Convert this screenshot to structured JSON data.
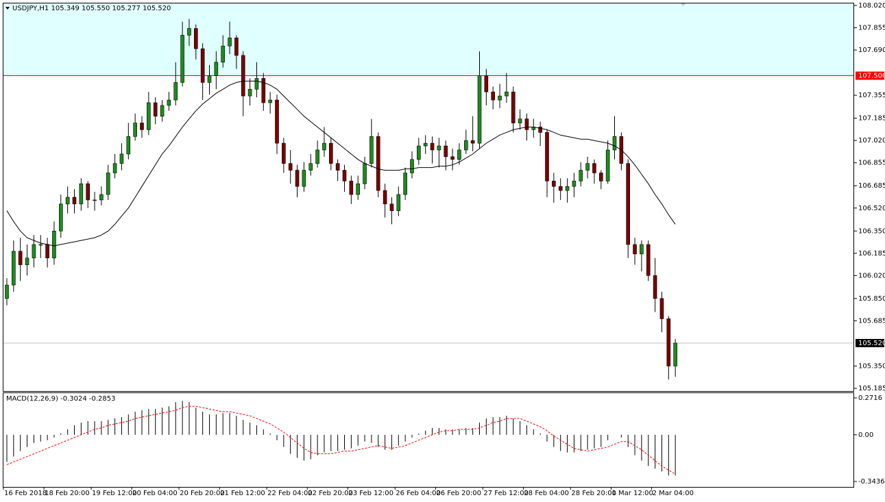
{
  "chart_data": [
    {
      "type": "candlestick",
      "title": "USDJPY,H1 105.349 105.550 105.277 105.520",
      "categories": [
        "16 Feb 2018",
        null,
        null,
        null,
        null,
        null,
        "18 Feb 20:00",
        null,
        null,
        null,
        null,
        null,
        null,
        "19 Feb 12:00",
        null,
        null,
        null,
        null,
        null,
        "20 Feb 04:00",
        null,
        null,
        null,
        null,
        null,
        null,
        "20 Feb 20:00",
        null,
        null,
        null,
        null,
        null,
        "21 Feb 12:00",
        null,
        null,
        null,
        null,
        null,
        null,
        "22 Feb 04:00",
        null,
        null,
        null,
        null,
        null,
        "22 Feb 20:00",
        null,
        null,
        null,
        null,
        null,
        "23 Feb 12:00",
        null,
        null,
        null,
        null,
        null,
        null,
        "26 Feb 04:00",
        null,
        null,
        null,
        null,
        null,
        "26 Feb 20:00",
        null,
        null,
        null,
        null,
        null,
        null,
        "27 Feb 12:00",
        null,
        null,
        null,
        null,
        null,
        "28 Feb 04:00",
        null,
        null,
        null,
        null,
        null,
        null,
        "28 Feb 20:00",
        null,
        null,
        null,
        null,
        null,
        "1 Mar 12:00",
        null,
        null,
        null,
        null,
        null,
        "2 Mar 04:00",
        null,
        null,
        null
      ],
      "open": [
        105.85,
        105.95,
        106.2,
        106.1,
        106.15,
        106.25,
        106.25,
        106.15,
        106.35,
        106.55,
        106.6,
        106.55,
        106.7,
        106.58,
        106.58,
        106.62,
        106.78,
        106.85,
        106.92,
        107.05,
        107.15,
        107.1,
        107.3,
        107.2,
        107.28,
        107.32,
        107.45,
        107.8,
        107.85,
        107.7,
        107.45,
        107.5,
        107.6,
        107.72,
        107.78,
        107.65,
        107.35,
        107.4,
        107.48,
        107.3,
        107.32,
        107.0,
        106.85,
        106.8,
        106.68,
        106.8,
        106.85,
        106.95,
        107.0,
        106.85,
        106.8,
        106.72,
        106.62,
        106.7,
        106.85,
        107.05,
        106.65,
        106.55,
        106.5,
        106.62,
        106.78,
        106.88,
        106.98,
        107.0,
        106.95,
        106.98,
        106.9,
        106.88,
        106.95,
        107.02,
        107.0,
        107.5,
        107.38,
        107.32,
        107.35,
        107.38,
        107.15,
        107.18,
        107.1,
        107.12,
        107.08,
        106.72,
        106.68,
        106.65,
        106.68,
        106.72,
        106.8,
        106.85,
        106.78,
        106.72,
        106.95,
        107.05,
        106.85,
        106.25,
        106.18,
        106.25,
        106.02,
        105.85,
        105.7,
        105.35
      ],
      "high": [
        106.0,
        106.28,
        106.3,
        106.25,
        106.32,
        106.32,
        106.3,
        106.42,
        106.62,
        106.68,
        106.66,
        106.74,
        106.72,
        106.64,
        106.68,
        106.84,
        106.92,
        107.0,
        107.15,
        107.22,
        107.2,
        107.38,
        107.34,
        107.32,
        107.38,
        107.6,
        107.9,
        107.92,
        107.88,
        107.74,
        107.58,
        107.68,
        107.8,
        107.9,
        107.8,
        107.68,
        107.48,
        107.6,
        107.52,
        107.38,
        107.36,
        107.04,
        106.95,
        106.84,
        106.86,
        106.92,
        107.02,
        107.12,
        107.04,
        106.88,
        106.84,
        106.76,
        106.76,
        106.9,
        107.18,
        107.08,
        106.7,
        106.6,
        106.68,
        106.82,
        106.94,
        107.04,
        107.06,
        107.05,
        107.04,
        107.02,
        106.96,
        107.0,
        107.1,
        107.2,
        107.68,
        107.55,
        107.42,
        107.44,
        107.52,
        107.42,
        107.25,
        107.22,
        107.18,
        107.16,
        107.1,
        106.78,
        106.74,
        106.74,
        106.78,
        106.86,
        106.9,
        106.88,
        106.8,
        107.02,
        107.2,
        107.08,
        106.88,
        106.3,
        106.28,
        106.28,
        106.15,
        105.9,
        105.72,
        105.55
      ],
      "low": [
        105.8,
        105.9,
        105.98,
        106.02,
        106.08,
        106.15,
        106.08,
        106.1,
        106.3,
        106.48,
        106.48,
        106.5,
        106.52,
        106.5,
        106.54,
        106.58,
        106.74,
        106.8,
        106.88,
        107.02,
        107.04,
        107.06,
        107.14,
        107.16,
        107.24,
        107.28,
        107.42,
        107.72,
        107.62,
        107.32,
        107.36,
        107.4,
        107.56,
        107.66,
        107.55,
        107.2,
        107.28,
        107.34,
        107.24,
        107.22,
        106.92,
        106.78,
        106.7,
        106.6,
        106.64,
        106.76,
        106.82,
        106.9,
        106.8,
        106.72,
        106.64,
        106.55,
        106.58,
        106.66,
        106.82,
        106.6,
        106.45,
        106.4,
        106.46,
        106.58,
        106.74,
        106.84,
        106.92,
        106.85,
        106.82,
        106.8,
        106.8,
        106.84,
        106.92,
        106.94,
        106.96,
        107.28,
        107.25,
        107.26,
        107.3,
        107.08,
        107.1,
        107.02,
        107.04,
        106.98,
        106.6,
        106.56,
        106.58,
        106.56,
        106.6,
        106.68,
        106.74,
        106.7,
        106.66,
        106.7,
        106.88,
        106.8,
        106.15,
        106.1,
        106.05,
        105.98,
        105.75,
        105.6,
        105.25,
        105.27
      ],
      "close": [
        105.95,
        106.2,
        106.1,
        106.15,
        106.25,
        106.25,
        106.15,
        106.35,
        106.55,
        106.6,
        106.55,
        106.7,
        106.58,
        106.58,
        106.62,
        106.78,
        106.85,
        106.92,
        107.05,
        107.15,
        107.1,
        107.3,
        107.2,
        107.28,
        107.32,
        107.45,
        107.8,
        107.85,
        107.7,
        107.45,
        107.5,
        107.6,
        107.72,
        107.78,
        107.65,
        107.35,
        107.4,
        107.48,
        107.3,
        107.32,
        107.0,
        106.85,
        106.8,
        106.68,
        106.8,
        106.85,
        106.95,
        107.0,
        106.85,
        106.8,
        106.72,
        106.62,
        106.7,
        106.85,
        107.05,
        106.65,
        106.55,
        106.5,
        106.62,
        106.78,
        106.88,
        106.98,
        107.0,
        106.95,
        106.98,
        106.9,
        106.88,
        106.95,
        107.02,
        107.0,
        107.5,
        107.38,
        107.32,
        107.35,
        107.38,
        107.15,
        107.18,
        107.1,
        107.12,
        107.08,
        106.72,
        106.68,
        106.65,
        106.68,
        106.72,
        106.8,
        106.85,
        106.78,
        106.72,
        106.95,
        107.05,
        106.85,
        106.25,
        106.18,
        106.25,
        106.02,
        105.85,
        105.7,
        105.35,
        105.52
      ],
      "up_color": "#1e8c1e",
      "down_color": "#7a0000",
      "ma": {
        "color": "#000000",
        "values": [
          106.5,
          106.42,
          106.35,
          106.3,
          106.28,
          106.26,
          106.25,
          106.24,
          106.25,
          106.26,
          106.27,
          106.28,
          106.29,
          106.3,
          106.32,
          106.35,
          106.4,
          106.46,
          106.52,
          106.6,
          106.68,
          106.76,
          106.84,
          106.92,
          106.98,
          107.05,
          107.12,
          107.18,
          107.24,
          107.29,
          107.33,
          107.37,
          107.4,
          107.43,
          107.45,
          107.46,
          107.46,
          107.46,
          107.45,
          107.43,
          107.4,
          107.35,
          107.3,
          107.25,
          107.2,
          107.16,
          107.12,
          107.08,
          107.04,
          107.0,
          106.96,
          106.92,
          106.88,
          106.85,
          106.83,
          106.81,
          106.8,
          106.8,
          106.8,
          106.81,
          106.81,
          106.82,
          106.82,
          106.82,
          106.83,
          106.83,
          106.84,
          106.86,
          106.89,
          106.92,
          106.96,
          107.0,
          107.03,
          107.06,
          107.08,
          107.1,
          107.11,
          107.12,
          107.12,
          107.11,
          107.1,
          107.08,
          107.06,
          107.05,
          107.04,
          107.03,
          107.03,
          107.02,
          107.01,
          107.0,
          106.98,
          106.95,
          106.9,
          106.84,
          106.77,
          106.7,
          106.62,
          106.55,
          106.47,
          106.4
        ]
      },
      "ylim": [
        105.185,
        108.02
      ],
      "yticks": [
        {
          "value": 108.02,
          "label": "108.020"
        },
        107.855,
        {
          "value": 107.69,
          "label": "107.690"
        },
        107.355,
        107.185,
        {
          "value": 107.02,
          "label": "107.020"
        },
        106.855,
        106.685,
        {
          "value": 106.52,
          "label": "106.520"
        },
        {
          "value": 106.35,
          "label": "106.350"
        },
        106.185,
        {
          "value": 106.02,
          "label": "106.020"
        },
        {
          "value": 105.85,
          "label": "105.850"
        },
        105.685,
        {
          "value": 105.35,
          "label": "105.350"
        },
        105.185
      ],
      "levels": [
        {
          "value": 107.5,
          "label": "107.500",
          "color": "#ff0000",
          "zone_color": "#e0ffff"
        }
      ],
      "last": {
        "value": 105.52,
        "label": "105.520",
        "color": "#c0c0c0"
      }
    },
    {
      "type": "macd",
      "title": "MACD(12,26,9) -0.3024 -0.2853",
      "histogram": {
        "color": "#000000",
        "values": [
          -0.2,
          -0.16,
          -0.12,
          -0.09,
          -0.06,
          -0.05,
          -0.04,
          -0.02,
          0.01,
          0.04,
          0.07,
          0.09,
          0.1,
          0.1,
          0.1,
          0.11,
          0.12,
          0.13,
          0.15,
          0.17,
          0.18,
          0.19,
          0.19,
          0.2,
          0.21,
          0.24,
          0.25,
          0.24,
          0.2,
          0.17,
          0.15,
          0.15,
          0.16,
          0.16,
          0.14,
          0.11,
          0.09,
          0.07,
          0.04,
          0.01,
          -0.04,
          -0.09,
          -0.14,
          -0.17,
          -0.19,
          -0.18,
          -0.15,
          -0.13,
          -0.12,
          -0.12,
          -0.11,
          -0.1,
          -0.08,
          -0.05,
          -0.06,
          -0.09,
          -0.11,
          -0.11,
          -0.08,
          -0.05,
          -0.02,
          0.01,
          0.03,
          0.05,
          0.05,
          0.04,
          0.04,
          0.04,
          0.05,
          0.05,
          0.09,
          0.12,
          0.13,
          0.13,
          0.14,
          0.12,
          0.1,
          0.07,
          0.04,
          0.01,
          -0.05,
          -0.09,
          -0.12,
          -0.13,
          -0.13,
          -0.12,
          -0.11,
          -0.1,
          -0.09,
          -0.04,
          0.0,
          -0.02,
          -0.09,
          -0.15,
          -0.19,
          -0.23,
          -0.25,
          -0.27,
          -0.3,
          -0.3
        ]
      },
      "signal": {
        "color": "#ff0000",
        "values": [
          -0.22,
          -0.2,
          -0.18,
          -0.16,
          -0.14,
          -0.12,
          -0.1,
          -0.08,
          -0.06,
          -0.04,
          -0.02,
          0.0,
          0.02,
          0.04,
          0.05,
          0.07,
          0.08,
          0.09,
          0.1,
          0.12,
          0.13,
          0.14,
          0.15,
          0.16,
          0.17,
          0.18,
          0.2,
          0.21,
          0.21,
          0.2,
          0.19,
          0.18,
          0.17,
          0.17,
          0.16,
          0.15,
          0.14,
          0.12,
          0.1,
          0.08,
          0.05,
          0.02,
          -0.02,
          -0.06,
          -0.1,
          -0.13,
          -0.14,
          -0.14,
          -0.14,
          -0.13,
          -0.12,
          -0.12,
          -0.11,
          -0.1,
          -0.09,
          -0.08,
          -0.09,
          -0.1,
          -0.09,
          -0.08,
          -0.06,
          -0.04,
          -0.02,
          0.0,
          0.02,
          0.03,
          0.03,
          0.04,
          0.04,
          0.04,
          0.05,
          0.07,
          0.09,
          0.1,
          0.12,
          0.12,
          0.12,
          0.1,
          0.08,
          0.06,
          0.03,
          -0.01,
          -0.04,
          -0.07,
          -0.1,
          -0.11,
          -0.12,
          -0.11,
          -0.1,
          -0.09,
          -0.07,
          -0.05,
          -0.05,
          -0.08,
          -0.11,
          -0.15,
          -0.19,
          -0.23,
          -0.26,
          -0.29
        ]
      },
      "ylim": [
        -0.3436,
        0.2716
      ],
      "yticks": [
        0.2716,
        {
          "value": 0,
          "label": "0.00"
        },
        -0.3436
      ]
    }
  ]
}
